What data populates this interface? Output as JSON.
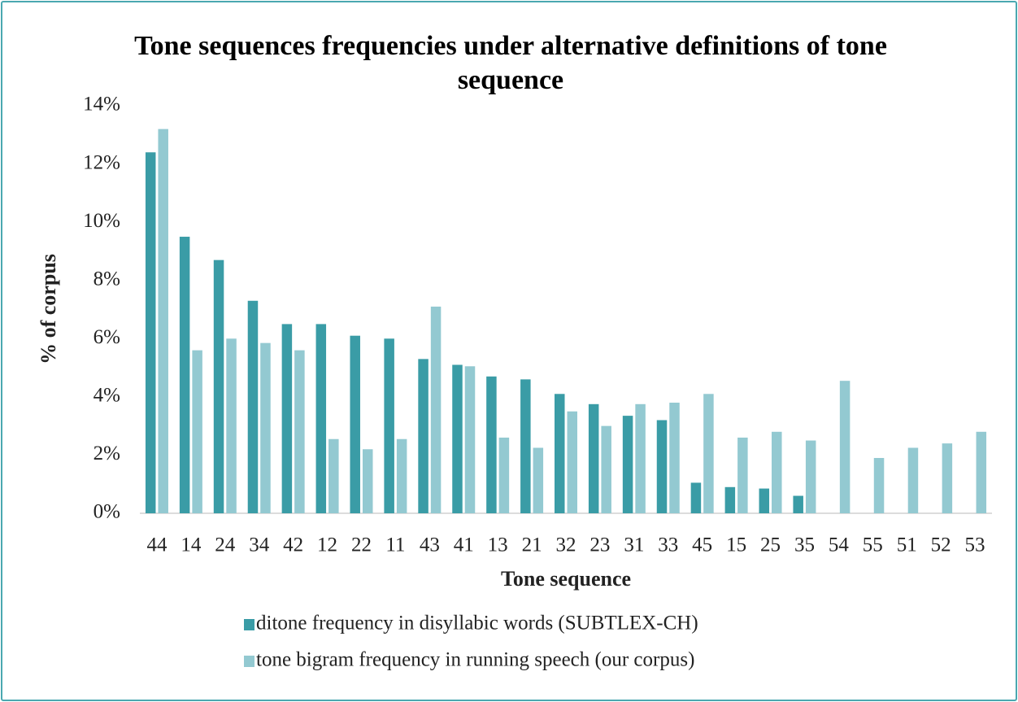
{
  "chart_data": {
    "type": "bar",
    "title": "Tone sequences frequencies under alternative definitions of tone sequence",
    "x_label": "Tone sequence",
    "y_label": "% of corpus",
    "categories": [
      "44",
      "14",
      "24",
      "34",
      "42",
      "12",
      "22",
      "11",
      "43",
      "41",
      "13",
      "21",
      "32",
      "23",
      "31",
      "33",
      "45",
      "15",
      "25",
      "35",
      "54",
      "55",
      "51",
      "52",
      "53"
    ],
    "series": [
      {
        "name": "ditone frequency in disyllabic words (SUBTLEX-CH)",
        "color": "#3a9ca6",
        "values": [
          12.4,
          9.5,
          8.7,
          7.3,
          6.5,
          6.5,
          6.1,
          6.0,
          5.3,
          5.1,
          4.7,
          4.6,
          4.1,
          3.75,
          3.35,
          3.2,
          1.05,
          0.9,
          0.85,
          0.6,
          null,
          null,
          null,
          null,
          null
        ]
      },
      {
        "name": "tone bigram frequency in running speech (our corpus)",
        "color": "#93c9d1",
        "values": [
          13.2,
          5.6,
          6.0,
          5.85,
          5.6,
          2.55,
          2.2,
          2.55,
          7.1,
          5.05,
          2.6,
          2.25,
          3.5,
          3.0,
          3.75,
          3.8,
          4.1,
          2.6,
          2.8,
          2.5,
          4.55,
          1.9,
          2.25,
          2.4,
          2.8
        ]
      }
    ],
    "ylim": [
      0,
      14
    ],
    "yticks": [
      {
        "value": 0,
        "label": "0%"
      },
      {
        "value": 2,
        "label": "2%"
      },
      {
        "value": 4,
        "label": "4%"
      },
      {
        "value": 6,
        "label": "6%"
      },
      {
        "value": 8,
        "label": "8%"
      },
      {
        "value": 10,
        "label": "10%"
      },
      {
        "value": 12,
        "label": "12%"
      },
      {
        "value": 14,
        "label": "14%"
      }
    ],
    "grid": false,
    "legend": "bottom"
  }
}
